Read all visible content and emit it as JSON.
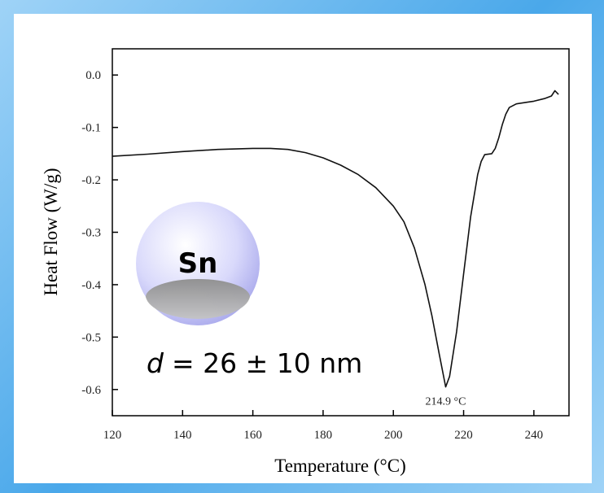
{
  "chart_data": {
    "type": "line",
    "x_label": "Temperature (°C)",
    "y_label": "Heat Flow (W/g)",
    "x": [
      120,
      130,
      140,
      150,
      160,
      165,
      170,
      175,
      180,
      185,
      190,
      195,
      200,
      203,
      206,
      209,
      211,
      213,
      214.9,
      216,
      218,
      220,
      222,
      224,
      225,
      226,
      228,
      229,
      230,
      231,
      232,
      233,
      235,
      238,
      240,
      243,
      245,
      246,
      247
    ],
    "series": [
      {
        "color": "#111111",
        "values": [
          -0.155,
          -0.151,
          -0.146,
          -0.142,
          -0.14,
          -0.14,
          -0.142,
          -0.148,
          -0.158,
          -0.172,
          -0.19,
          -0.215,
          -0.25,
          -0.28,
          -0.33,
          -0.4,
          -0.46,
          -0.53,
          -0.595,
          -0.575,
          -0.49,
          -0.38,
          -0.27,
          -0.19,
          -0.165,
          -0.152,
          -0.15,
          -0.14,
          -0.12,
          -0.095,
          -0.075,
          -0.062,
          -0.055,
          -0.052,
          -0.05,
          -0.045,
          -0.04,
          -0.03,
          -0.037
        ]
      }
    ],
    "xlim": [
      120,
      250
    ],
    "xticks": [
      120,
      140,
      160,
      180,
      200,
      220,
      240
    ],
    "ylim": [
      -0.65,
      0.05
    ],
    "yticks": [
      {
        "value": 0,
        "label": "0.0"
      },
      -0.1,
      -0.2,
      -0.3,
      -0.4,
      -0.5,
      -0.6
    ],
    "annotations": [
      {
        "text": "214.9 °C",
        "x": 214.9,
        "y": -0.595
      }
    ],
    "particle": {
      "element": "Sn",
      "symbol": "d",
      "size_text": "= 26 ± 10 nm"
    }
  }
}
